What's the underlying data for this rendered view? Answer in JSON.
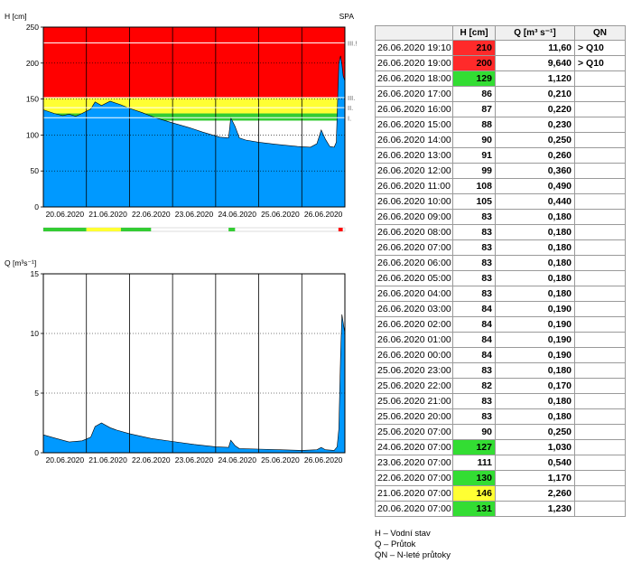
{
  "chart_data": [
    {
      "type": "area",
      "ylabel": "H [cm]",
      "station_label": "SPA",
      "ylim": [
        0,
        250
      ],
      "yticks": [
        0,
        50,
        100,
        150,
        200,
        250
      ],
      "x_range_days": [
        0,
        7
      ],
      "x_start": "20.06.2020",
      "xtick_labels": [
        "20.06.2020",
        "21.06.2020",
        "22.06.2020",
        "23.06.2020",
        "24.06.2020",
        "25.06.2020",
        "26.06.2020"
      ],
      "bands": [
        {
          "from": 120,
          "to": 130,
          "color": "#33cc33"
        },
        {
          "from": 130,
          "to": 152,
          "color": "#ffff33"
        },
        {
          "from": 152,
          "to": 250,
          "color": "#ff0000"
        }
      ],
      "thresholds": [
        {
          "label": "III.!",
          "value": 228
        },
        {
          "label": "III.",
          "value": 152
        },
        {
          "label": "II.",
          "value": 138
        },
        {
          "label": "I.",
          "value": 124
        }
      ],
      "series": [
        {
          "color": "#0099ff",
          "x_days": [
            0,
            0.25,
            0.45,
            0.6,
            0.75,
            0.9,
            1.1,
            1.2,
            1.35,
            1.55,
            1.7,
            1.8,
            2,
            2.3,
            2.6,
            3,
            3.4,
            3.7,
            4.1,
            4.3,
            4.35,
            4.45,
            4.55,
            4.7,
            5,
            5.4,
            5.9,
            6.2,
            6.35,
            6.45,
            6.55,
            6.65,
            6.75,
            6.8,
            6.82,
            6.86,
            6.9,
            6.93,
            6.96,
            7
          ],
          "y": [
            135,
            130,
            127,
            129,
            126,
            130,
            136,
            146,
            141,
            147,
            144,
            142,
            137,
            131,
            124,
            117,
            110,
            104,
            97,
            96,
            124,
            112,
            96,
            93,
            90,
            87,
            84,
            83,
            88,
            107,
            94,
            84,
            83,
            90,
            127,
            200,
            210,
            198,
            182,
            175
          ]
        }
      ],
      "flag_strip": [
        {
          "from": 0,
          "to": 1,
          "color": "#33cc33"
        },
        {
          "from": 1,
          "to": 1.8,
          "color": "#ffff33"
        },
        {
          "from": 1.8,
          "to": 2.5,
          "color": "#33cc33"
        },
        {
          "from": 4.3,
          "to": 4.45,
          "color": "#33cc33"
        },
        {
          "from": 6.85,
          "to": 6.95,
          "color": "#ff0000"
        }
      ]
    },
    {
      "type": "area",
      "ylabel": "Q [m³s⁻¹]",
      "ylim": [
        0,
        15
      ],
      "yticks": [
        0,
        5,
        10,
        15
      ],
      "x_range_days": [
        0,
        7
      ],
      "x_start": "20.06.2020",
      "xtick_labels": [
        "20.06.2020",
        "21.06.2020",
        "22.06.2020",
        "23.06.2020",
        "24.06.2020",
        "25.06.2020",
        "26.06.2020"
      ],
      "series": [
        {
          "color": "#0099ff",
          "x_days": [
            0,
            0.3,
            0.6,
            0.9,
            1.1,
            1.2,
            1.35,
            1.55,
            1.7,
            2,
            2.5,
            3,
            3.5,
            4,
            4.3,
            4.35,
            4.45,
            4.55,
            5,
            5.5,
            6,
            6.35,
            6.45,
            6.55,
            6.75,
            6.82,
            6.86,
            6.9,
            6.93,
            7
          ],
          "y": [
            1.5,
            1.2,
            0.9,
            1.0,
            1.3,
            2.2,
            2.5,
            2.1,
            1.9,
            1.6,
            1.2,
            0.95,
            0.7,
            0.5,
            0.45,
            1.05,
            0.6,
            0.35,
            0.3,
            0.25,
            0.2,
            0.25,
            0.45,
            0.25,
            0.2,
            0.5,
            2.0,
            8.0,
            11.6,
            10.0
          ]
        }
      ]
    }
  ],
  "table": {
    "headers": [
      "",
      "H [cm]",
      "Q [m³ s⁻¹]",
      "QN"
    ],
    "rows": [
      {
        "time": "26.06.2020 19:10",
        "h": "210",
        "q": "11,60",
        "n": "> Q10",
        "color": "#ff2a2a"
      },
      {
        "time": "26.06.2020 19:00",
        "h": "200",
        "q": "9,640",
        "n": "> Q10",
        "color": "#ff2a2a"
      },
      {
        "time": "26.06.2020 18:00",
        "h": "129",
        "q": "1,120",
        "n": "",
        "color": "#33dd33"
      },
      {
        "time": "26.06.2020 17:00",
        "h": "86",
        "q": "0,210",
        "n": "",
        "color": ""
      },
      {
        "time": "26.06.2020 16:00",
        "h": "87",
        "q": "0,220",
        "n": "",
        "color": ""
      },
      {
        "time": "26.06.2020 15:00",
        "h": "88",
        "q": "0,230",
        "n": "",
        "color": ""
      },
      {
        "time": "26.06.2020 14:00",
        "h": "90",
        "q": "0,250",
        "n": "",
        "color": ""
      },
      {
        "time": "26.06.2020 13:00",
        "h": "91",
        "q": "0,260",
        "n": "",
        "color": ""
      },
      {
        "time": "26.06.2020 12:00",
        "h": "99",
        "q": "0,360",
        "n": "",
        "color": ""
      },
      {
        "time": "26.06.2020 11:00",
        "h": "108",
        "q": "0,490",
        "n": "",
        "color": ""
      },
      {
        "time": "26.06.2020 10:00",
        "h": "105",
        "q": "0,440",
        "n": "",
        "color": ""
      },
      {
        "time": "26.06.2020 09:00",
        "h": "83",
        "q": "0,180",
        "n": "",
        "color": ""
      },
      {
        "time": "26.06.2020 08:00",
        "h": "83",
        "q": "0,180",
        "n": "",
        "color": ""
      },
      {
        "time": "26.06.2020 07:00",
        "h": "83",
        "q": "0,180",
        "n": "",
        "color": ""
      },
      {
        "time": "26.06.2020 06:00",
        "h": "83",
        "q": "0,180",
        "n": "",
        "color": ""
      },
      {
        "time": "26.06.2020 05:00",
        "h": "83",
        "q": "0,180",
        "n": "",
        "color": ""
      },
      {
        "time": "26.06.2020 04:00",
        "h": "83",
        "q": "0,180",
        "n": "",
        "color": ""
      },
      {
        "time": "26.06.2020 03:00",
        "h": "84",
        "q": "0,190",
        "n": "",
        "color": ""
      },
      {
        "time": "26.06.2020 02:00",
        "h": "84",
        "q": "0,190",
        "n": "",
        "color": ""
      },
      {
        "time": "26.06.2020 01:00",
        "h": "84",
        "q": "0,190",
        "n": "",
        "color": ""
      },
      {
        "time": "26.06.2020 00:00",
        "h": "84",
        "q": "0,190",
        "n": "",
        "color": ""
      },
      {
        "time": "25.06.2020 23:00",
        "h": "83",
        "q": "0,180",
        "n": "",
        "color": ""
      },
      {
        "time": "25.06.2020 22:00",
        "h": "82",
        "q": "0,170",
        "n": "",
        "color": ""
      },
      {
        "time": "25.06.2020 21:00",
        "h": "83",
        "q": "0,180",
        "n": "",
        "color": ""
      },
      {
        "time": "25.06.2020 20:00",
        "h": "83",
        "q": "0,180",
        "n": "",
        "color": ""
      },
      {
        "time": "25.06.2020 07:00",
        "h": "90",
        "q": "0,250",
        "n": "",
        "color": ""
      },
      {
        "time": "24.06.2020 07:00",
        "h": "127",
        "q": "1,030",
        "n": "",
        "color": "#33dd33"
      },
      {
        "time": "23.06.2020 07:00",
        "h": "111",
        "q": "0,540",
        "n": "",
        "color": ""
      },
      {
        "time": "22.06.2020 07:00",
        "h": "130",
        "q": "1,170",
        "n": "",
        "color": "#33dd33"
      },
      {
        "time": "21.06.2020 07:00",
        "h": "146",
        "q": "2,260",
        "n": "",
        "color": "#ffff33"
      },
      {
        "time": "20.06.2020 07:00",
        "h": "131",
        "q": "1,230",
        "n": "",
        "color": "#33dd33"
      }
    ]
  },
  "legend": {
    "line1": "H – Vodní stav",
    "line2": "Q – Průtok",
    "line3": "QN – N-leté průtoky"
  }
}
